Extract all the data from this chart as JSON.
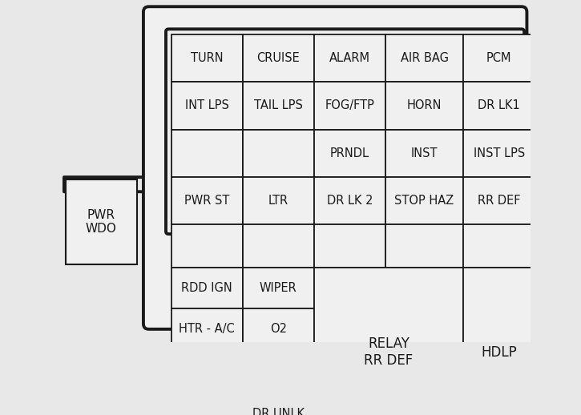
{
  "bg_color": "#e8e8e8",
  "box_color": "#f0f0f0",
  "border_color": "#1a1a1a",
  "text_color": "#1a1a1a",
  "fig_width": 7.25,
  "fig_height": 5.18,
  "cells_top": [
    [
      [
        "TURN"
      ],
      [
        "CRUISE"
      ],
      [
        "ALARM"
      ],
      [
        "AIR BAG"
      ],
      [
        "PCM"
      ]
    ],
    [
      [
        "INT LPS"
      ],
      [
        "TAIL LPS"
      ],
      [
        "FOG/FTP"
      ],
      [
        "HORN"
      ],
      [
        "DR LK1"
      ]
    ],
    [
      [
        ""
      ],
      [
        ""
      ],
      [
        "PRNDL"
      ],
      [
        "INST"
      ],
      [
        "INST LPS"
      ]
    ],
    [
      [
        "PWR ST"
      ],
      [
        "LTR"
      ],
      [
        "DR LK 2"
      ],
      [
        "STOP HAZ"
      ],
      [
        "RR DEF"
      ]
    ],
    [
      [
        ""
      ],
      [
        ""
      ],
      [
        ""
      ],
      [
        ""
      ],
      [
        ""
      ]
    ]
  ],
  "cells_left_bottom": [
    [
      [
        "RDD IGN"
      ],
      [
        "WIPER"
      ]
    ],
    [
      [
        "HTR - A/C"
      ],
      [
        "O2"
      ]
    ],
    [
      [
        ""
      ],
      [
        ""
      ]
    ],
    [
      [
        ""
      ],
      [
        "DR UNLK"
      ]
    ]
  ],
  "relay_label": "RELAY\nRR DEF",
  "hdlp_label": "HDLP",
  "pwr_wdo_label": "PWR\nWDO"
}
